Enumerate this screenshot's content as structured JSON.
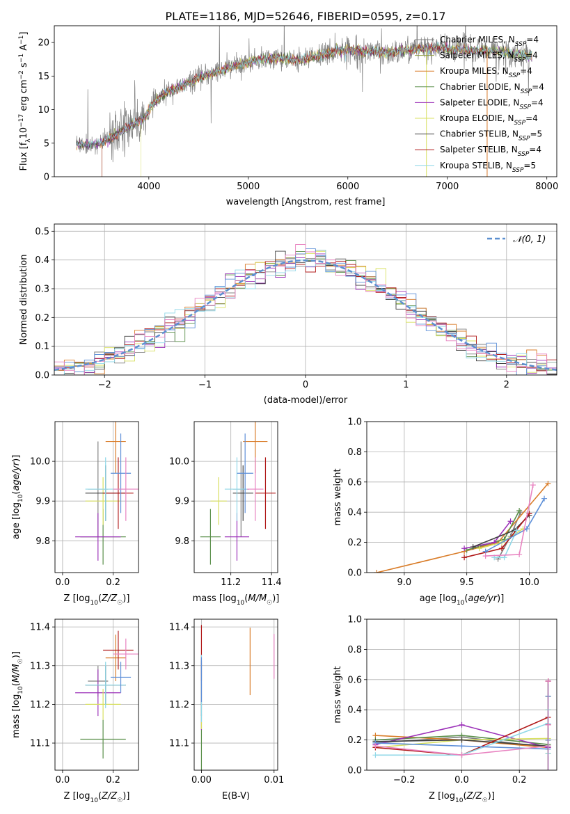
{
  "title": "PLATE=1186, MJD=52646, FIBERID=0595, z=0.17",
  "colors": {
    "chabrier_miles": "#808080",
    "salpeter_miles": "#8b9a3a",
    "kroupa_miles": "#d97c28",
    "chabrier_elodie": "#5a8f4a",
    "salpeter_elodie": "#9b30b8",
    "kroupa_elodie": "#d8e060",
    "chabrier_stelib": "#404040",
    "salpeter_stelib": "#b01818",
    "kroupa_stelib": "#90d8e8",
    "extra_blue": "#5d8fd8",
    "extra_pink": "#e882c0",
    "gaussian": "#5b8fd0"
  },
  "chart_data": [
    {
      "type": "line",
      "id": "spectrum",
      "title": "PLATE=1186, MJD=52646, FIBERID=0595, z=0.17",
      "xlabel": "wavelength [Angstrom, rest frame]",
      "ylabel": "Flux [f_λ 10^-17 erg cm^-2 s^-1 A^-1]",
      "xlim": [
        3050,
        8100
      ],
      "ylim": [
        0,
        22.5
      ],
      "xticks": [
        "4000",
        "5000",
        "6000",
        "7000",
        "8000"
      ],
      "yticks": [
        "0",
        "5",
        "10",
        "15",
        "20"
      ],
      "legend_position": "right",
      "legend": [
        "Chabrier MILES, N_SSP=4",
        "Salpeter MILES, N_SSP=4",
        "Kroupa MILES, N_SSP=4",
        "Chabrier ELODIE, N_SSP=4",
        "Salpeter ELODIE, N_SSP=4",
        "Kroupa ELODIE, N_SSP=4",
        "Chabrier STELIB, N_SSP=5",
        "Salpeter STELIB, N_SSP=4",
        "Kroupa STELIB, N_SSP=5"
      ],
      "continuum": {
        "x": [
          3270,
          3400,
          3550,
          3700,
          3850,
          3950,
          4050,
          4200,
          4350,
          4500,
          4700,
          4900,
          5100,
          5300,
          5500,
          5700,
          5900,
          6100,
          6300,
          6500,
          6700,
          6900,
          7100,
          7300,
          7500,
          7700,
          7850
        ],
        "y": [
          5.0,
          4.7,
          5.2,
          6.5,
          8.0,
          8.6,
          11.0,
          12.8,
          13.5,
          14.7,
          15.8,
          16.6,
          17.4,
          17.7,
          17.3,
          18.0,
          18.8,
          18.9,
          18.5,
          18.7,
          19.0,
          19.2,
          19.0,
          18.8,
          18.7,
          18.3,
          17.9
        ]
      }
    },
    {
      "type": "line",
      "id": "residual-hist",
      "xlabel": "(data-model)/error",
      "ylabel": "Normed distribution",
      "xlim": [
        -2.5,
        2.5
      ],
      "ylim": [
        0,
        0.525
      ],
      "xticks": [
        "−2",
        "−1",
        "0",
        "1",
        "2"
      ],
      "yticks": [
        "0.0",
        "0.1",
        "0.2",
        "0.3",
        "0.4",
        "0.5"
      ],
      "legend": [
        "𝒩(0, 1)"
      ],
      "legend_position": "top-right",
      "bin_width": 0.1
    },
    {
      "type": "scatter",
      "id": "age-vs-z",
      "xlabel": "Z [log10(Z/Z☉)]",
      "ylabel": "age [log10(age/yr)]",
      "xlim": [
        -0.03,
        0.3
      ],
      "ylim": [
        9.72,
        10.1
      ],
      "xticks": [
        "0.0",
        "0.2"
      ],
      "yticks": [
        "9.8",
        "9.9",
        "10.0"
      ]
    },
    {
      "type": "scatter",
      "id": "age-vs-mass",
      "xlabel": "mass [log10(M/M☉)]",
      "ylabel": "",
      "xlim": [
        11.02,
        11.43
      ],
      "ylim": [
        9.72,
        10.1
      ],
      "xticks": [
        "11.2",
        "11.4"
      ],
      "yticks": [
        "9.8",
        "9.9",
        "10.0"
      ]
    },
    {
      "type": "line",
      "id": "massweight-vs-age",
      "xlabel": "age [log10(age/yr)]",
      "ylabel": "mass weight",
      "xlim": [
        8.7,
        10.22
      ],
      "ylim": [
        0,
        1.0
      ],
      "xticks": [
        "9.0",
        "9.5",
        "10.0"
      ],
      "yticks": [
        "0.0",
        "0.2",
        "0.4",
        "0.6",
        "0.8",
        "1.0"
      ]
    },
    {
      "type": "scatter",
      "id": "mass-vs-z",
      "xlabel": "Z [log10(Z/Z☉)]",
      "ylabel": "mass [log10(M/M☉)]",
      "xlim": [
        -0.03,
        0.3
      ],
      "ylim": [
        11.03,
        11.42
      ],
      "xticks": [
        "0.0",
        "0.2"
      ],
      "yticks": [
        "11.1",
        "11.2",
        "11.3",
        "11.4"
      ]
    },
    {
      "type": "scatter",
      "id": "mass-vs-ebv",
      "xlabel": "E(B-V)",
      "ylabel": "",
      "xlim": [
        -0.001,
        0.0105
      ],
      "ylim": [
        11.03,
        11.42
      ],
      "xticks": [
        "0.00",
        "0.01"
      ],
      "yticks": [
        "11.1",
        "11.2",
        "11.3",
        "11.4"
      ]
    },
    {
      "type": "line",
      "id": "massweight-vs-z",
      "xlabel": "Z [log10(Z/Z☉)]",
      "ylabel": "mass weight",
      "xlim": [
        -0.33,
        0.33
      ],
      "ylim": [
        0,
        1.0
      ],
      "xticks": [
        "−0.2",
        "0.0",
        "0.2"
      ],
      "yticks": [
        "0.0",
        "0.2",
        "0.4",
        "0.6",
        "0.8",
        "1.0"
      ]
    }
  ],
  "models": [
    {
      "ckey": "chabrier_miles",
      "z": 0.14,
      "zerr": 0.04,
      "age": 9.93,
      "ageerr": 0.12,
      "mass": 11.26,
      "masserr": 0.04,
      "mass_age": 11.25,
      "ebv": 0.0,
      "aw": [
        [
          9.75,
          0.09
        ],
        [
          9.85,
          0.24
        ],
        [
          9.93,
          0.4
        ]
      ],
      "zw": [
        [
          -0.3,
          0.18
        ],
        [
          0.0,
          0.22
        ],
        [
          0.3,
          0.15
        ]
      ]
    },
    {
      "ckey": "kroupa_miles",
      "z": 0.21,
      "zerr": 0.04,
      "age": 10.05,
      "ageerr": 0.08,
      "mass": 11.32,
      "masserr": 0.06,
      "mass_age": 11.32,
      "ebv": 0.0067,
      "aw": [
        [
          8.78,
          0.0
        ],
        [
          9.48,
          0.14
        ],
        [
          9.75,
          0.2
        ],
        [
          10.15,
          0.59
        ]
      ],
      "zw": [
        [
          -0.3,
          0.23
        ],
        [
          0.0,
          0.2
        ],
        [
          0.3,
          0.15
        ]
      ]
    },
    {
      "ckey": "chabrier_elodie",
      "z": 0.16,
      "zerr": 0.09,
      "age": 9.81,
      "ageerr": 0.07,
      "mass": 11.11,
      "masserr": 0.05,
      "mass_age": 11.1,
      "ebv": 0.0,
      "aw": [
        [
          9.5,
          0.15
        ],
        [
          9.8,
          0.22
        ],
        [
          9.92,
          0.41
        ]
      ],
      "zw": [
        [
          -0.3,
          0.2
        ],
        [
          0.0,
          0.23
        ],
        [
          0.3,
          0.17
        ]
      ]
    },
    {
      "ckey": "salpeter_elodie",
      "z": 0.14,
      "zerr": 0.09,
      "age": 9.81,
      "ageerr": 0.06,
      "mass": 11.23,
      "masserr": 0.06,
      "mass_age": 11.23,
      "ebv": 0.0,
      "aw": [
        [
          9.48,
          0.16
        ],
        [
          9.72,
          0.2
        ],
        [
          9.85,
          0.34
        ]
      ],
      "zw": [
        [
          -0.3,
          0.17
        ],
        [
          0.0,
          0.3
        ],
        [
          0.3,
          0.15
        ]
      ]
    },
    {
      "ckey": "kroupa_elodie",
      "z": 0.16,
      "zerr": 0.07,
      "age": 9.9,
      "ageerr": 0.06,
      "mass": 11.2,
      "masserr": 0.04,
      "mass_age": 11.14,
      "ebv": 0.0,
      "aw": [
        [
          9.6,
          0.16
        ],
        [
          9.78,
          0.2
        ],
        [
          9.95,
          0.29
        ]
      ],
      "zw": [
        [
          -0.3,
          0.15
        ],
        [
          0.0,
          0.2
        ],
        [
          0.3,
          0.21
        ]
      ]
    },
    {
      "ckey": "chabrier_stelib",
      "z": 0.17,
      "zerr": 0.08,
      "age": 9.92,
      "ageerr": 0.07,
      "mass": 11.25,
      "masserr": 0.05,
      "mass_age": 11.26,
      "ebv": 0.0,
      "aw": [
        [
          9.55,
          0.17
        ],
        [
          9.88,
          0.28
        ],
        [
          10.0,
          0.38
        ]
      ],
      "zw": [
        [
          -0.3,
          0.19
        ],
        [
          0.0,
          0.2
        ],
        [
          0.3,
          0.16
        ]
      ]
    },
    {
      "ckey": "salpeter_stelib",
      "z": 0.22,
      "zerr": 0.06,
      "age": 9.92,
      "ageerr": 0.09,
      "mass": 11.34,
      "masserr": 0.05,
      "mass_age": 11.37,
      "ebv": 0.0,
      "aw": [
        [
          9.48,
          0.1
        ],
        [
          9.78,
          0.16
        ],
        [
          10.0,
          0.39
        ]
      ],
      "zw": [
        [
          -0.3,
          0.15
        ],
        [
          0.0,
          0.1
        ],
        [
          0.3,
          0.35
        ]
      ]
    },
    {
      "ckey": "kroupa_stelib",
      "z": 0.17,
      "zerr": 0.08,
      "age": 9.93,
      "ageerr": 0.08,
      "mass": 11.25,
      "masserr": 0.06,
      "mass_age": 11.23,
      "ebv": 0.0,
      "aw": [
        [
          9.72,
          0.1
        ],
        [
          9.8,
          0.1
        ],
        [
          9.9,
          0.28
        ]
      ],
      "zw": [
        [
          -0.3,
          0.1
        ],
        [
          0.0,
          0.1
        ],
        [
          0.3,
          0.31
        ]
      ]
    },
    {
      "ckey": "extra_blue",
      "z": 0.23,
      "zerr": 0.04,
      "age": 9.97,
      "ageerr": 0.1,
      "mass": 11.27,
      "masserr": 0.04,
      "mass_age": 11.27,
      "ebv": 0.0,
      "aw": [
        [
          9.65,
          0.14
        ],
        [
          9.98,
          0.29
        ],
        [
          10.12,
          0.49
        ]
      ],
      "zw": [
        [
          -0.3,
          0.18
        ],
        [
          0.0,
          0.16
        ],
        [
          0.3,
          0.14
        ]
      ]
    },
    {
      "ckey": "extra_pink",
      "z": 0.25,
      "zerr": 0.05,
      "age": 9.93,
      "ageerr": 0.08,
      "mass": 11.33,
      "masserr": 0.04,
      "mass_age": 11.32,
      "ebv": 0.01,
      "aw": [
        [
          9.65,
          0.11
        ],
        [
          9.92,
          0.12
        ],
        [
          10.03,
          0.58
        ]
      ],
      "zw": [
        [
          -0.3,
          0.16
        ],
        [
          0.0,
          0.1
        ],
        [
          0.3,
          0.16
        ]
      ]
    }
  ]
}
